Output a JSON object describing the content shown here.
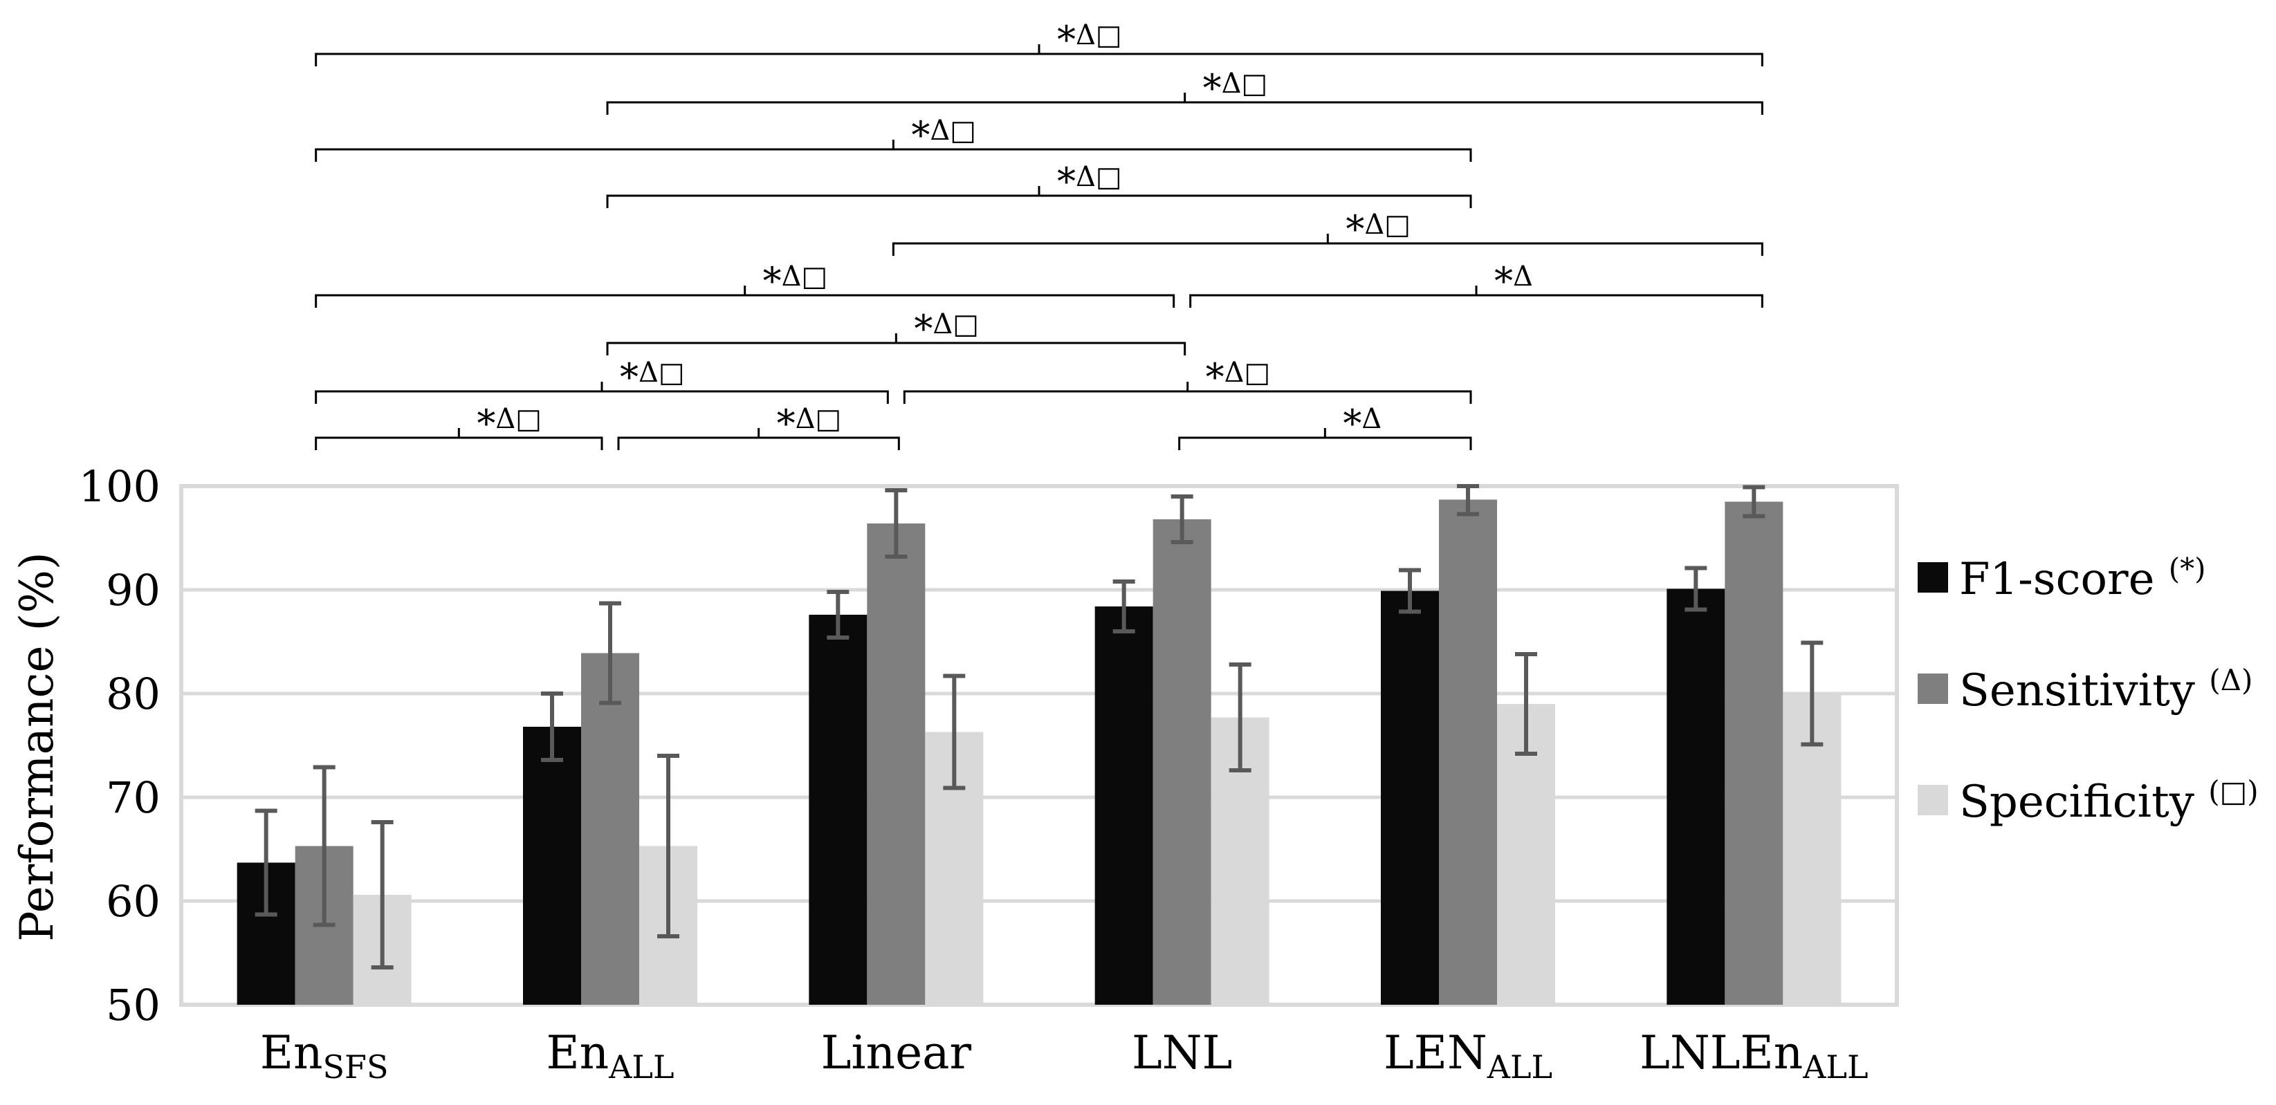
{
  "chart_data": {
    "type": "bar",
    "title": "",
    "xlabel": "",
    "ylabel": "Performance (%)",
    "ylim": [
      50,
      100
    ],
    "yticks": [
      50,
      60,
      70,
      80,
      90,
      100
    ],
    "grid": true,
    "legend_position": "right",
    "categories": [
      {
        "base": "En",
        "sub": "SFS"
      },
      {
        "base": "En",
        "sub": "ALL"
      },
      {
        "base": "Linear",
        "sub": ""
      },
      {
        "base": "LNL",
        "sub": ""
      },
      {
        "base": "LEN",
        "sub": "ALL"
      },
      {
        "base": "LNLEn",
        "sub": "ALL"
      }
    ],
    "series": [
      {
        "name": "F1-score",
        "marker": "*",
        "color": "#0a0a0a",
        "values": [
          63.7,
          76.8,
          87.6,
          88.4,
          89.9,
          90.1
        ],
        "errors": [
          5.0,
          3.2,
          2.2,
          2.4,
          2.0,
          2.0
        ]
      },
      {
        "name": "Sensitivity",
        "marker": "Δ",
        "color": "#7f7f7f",
        "values": [
          65.3,
          83.9,
          96.4,
          96.8,
          98.7,
          98.5
        ],
        "errors": [
          7.6,
          4.8,
          3.2,
          2.2,
          1.4,
          1.4
        ]
      },
      {
        "name": "Specificity",
        "marker": "□",
        "color": "#d9d9d9",
        "values": [
          60.6,
          65.3,
          76.3,
          77.7,
          79.0,
          80.0
        ],
        "errors": [
          7.0,
          8.7,
          5.4,
          5.1,
          4.8,
          4.9
        ]
      }
    ],
    "significance": [
      {
        "from": 0,
        "to": 5,
        "label": "*Δ□"
      },
      {
        "from": 1,
        "to": 5,
        "label": "*Δ□"
      },
      {
        "from": 0,
        "to": 4,
        "label": "*Δ□"
      },
      {
        "from": 1,
        "to": 4,
        "label": "*Δ□"
      },
      {
        "from": 2,
        "to": 5,
        "label": "*Δ□"
      },
      {
        "from": 0,
        "to": 3,
        "label": "*Δ□"
      },
      {
        "from": 3,
        "to": 5,
        "label": "*Δ"
      },
      {
        "from": 1,
        "to": 3,
        "label": "*Δ□"
      },
      {
        "from": 0,
        "to": 2,
        "label": "*Δ□"
      },
      {
        "from": 2,
        "to": 4,
        "label": "*Δ□"
      },
      {
        "from": 0,
        "to": 1,
        "label": "*Δ□"
      },
      {
        "from": 1,
        "to": 2,
        "label": "*Δ□"
      },
      {
        "from": 3,
        "to": 4,
        "label": "*Δ"
      }
    ]
  }
}
